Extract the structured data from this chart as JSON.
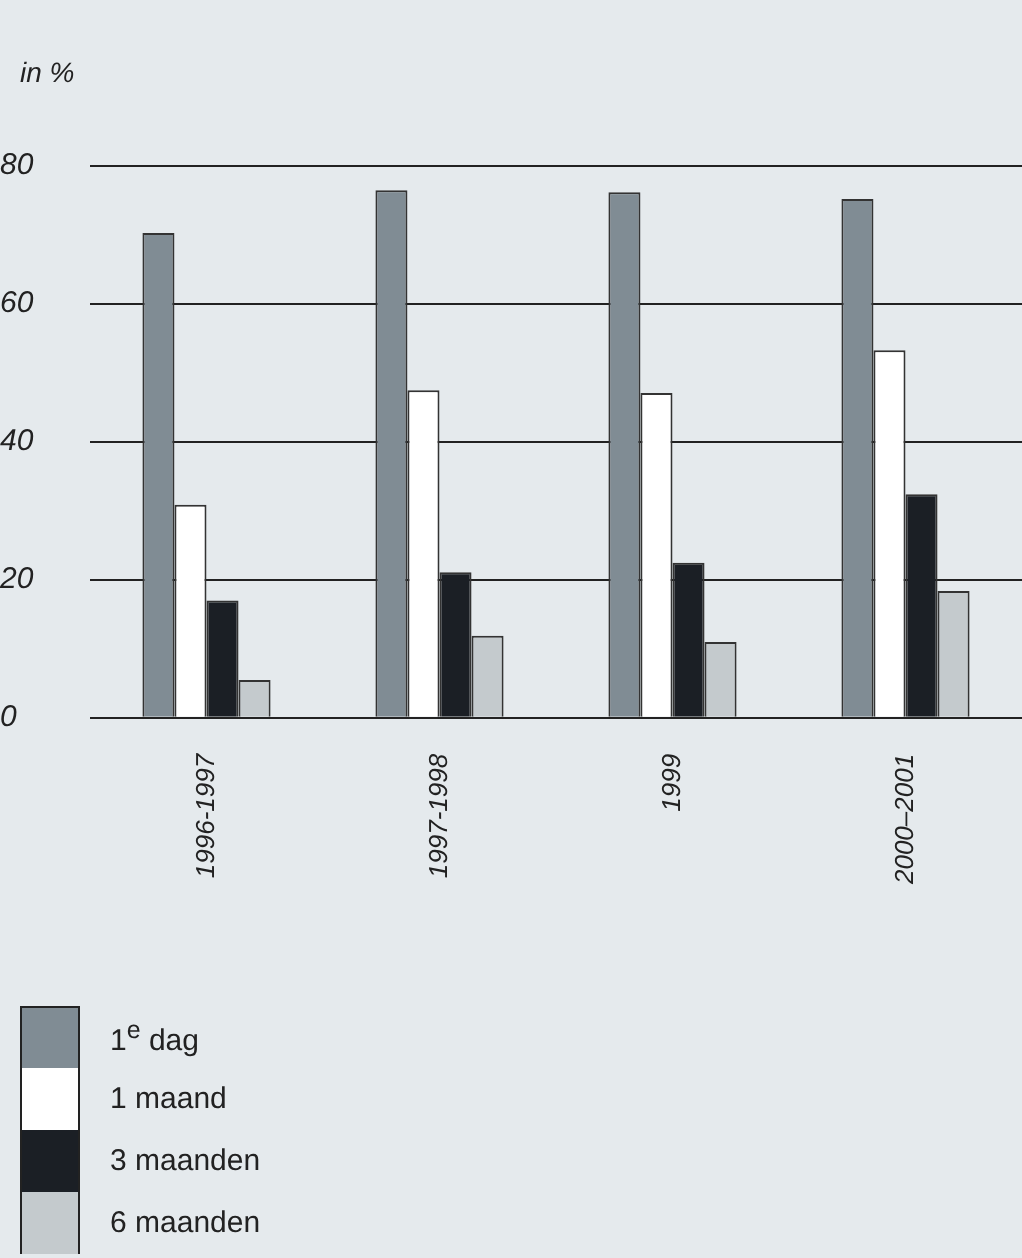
{
  "chart_data": {
    "type": "bar",
    "ylabel": "in %",
    "categories": [
      "1996-1997",
      "1997-1998",
      "1999",
      "2000–2001"
    ],
    "series": [
      {
        "name": "1$^{e}$ dag",
        "color": "#808c94",
        "values": [
          70.3,
          76.5,
          76.2,
          75.2
        ]
      },
      {
        "name": "1 maand",
        "color": "#ffffff",
        "values": [
          30.9,
          47.5,
          47.1,
          53.3
        ]
      },
      {
        "name": "3 maanden",
        "color": "#1b1f25",
        "values": [
          17.0,
          21.1,
          22.5,
          32.4
        ]
      },
      {
        "name": "6 maanden",
        "color": "#c4cacd",
        "values": [
          5.5,
          11.9,
          11.0,
          18.4
        ]
      }
    ],
    "ylim": [
      0,
      80
    ],
    "yticks": [
      0,
      20,
      40,
      60,
      80
    ],
    "grid": "y",
    "legend": "bottom left"
  }
}
